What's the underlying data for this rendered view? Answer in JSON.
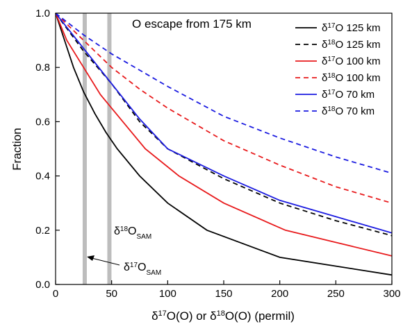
{
  "chart_data": {
    "type": "line",
    "title": "O escape from 175 km",
    "xlabel": {
      "parts": [
        {
          "text": "δ",
          "sup": false
        },
        {
          "text": "17",
          "sup": true
        },
        {
          "text": "O(O) or δ",
          "sup": false
        },
        {
          "text": "18",
          "sup": true
        },
        {
          "text": "O(O) (permil)",
          "sup": false
        }
      ]
    },
    "ylabel": "Fraction",
    "xlim": [
      0,
      300
    ],
    "ylim": [
      0,
      1.0
    ],
    "x_ticks": [
      0,
      50,
      100,
      150,
      200,
      250,
      300
    ],
    "y_ticks": [
      0.0,
      0.2,
      0.4,
      0.6,
      0.8,
      1.0
    ],
    "y_tick_labels": [
      "0.0",
      "0.2",
      "0.4",
      "0.6",
      "0.8",
      "1.0"
    ],
    "x_tick_labels": [
      "0",
      "50",
      "100",
      "150",
      "200",
      "250",
      "300"
    ],
    "grid": false,
    "legend_position": "top-right",
    "series": [
      {
        "name": {
          "prefix": "δ",
          "sup": "17",
          "suffix": "O 125 km"
        },
        "color": "#000000",
        "dash": "solid",
        "x": [
          0,
          8,
          16,
          25,
          35,
          45,
          55,
          75,
          100,
          135,
          200,
          300
        ],
        "y": [
          1.0,
          0.9,
          0.8,
          0.71,
          0.63,
          0.56,
          0.5,
          0.4,
          0.3,
          0.2,
          0.1,
          0.035
        ]
      },
      {
        "name": {
          "prefix": "δ",
          "sup": "18",
          "suffix": "O 125 km"
        },
        "color": "#000000",
        "dash": "dashed",
        "x": [
          0,
          25,
          50,
          75,
          100,
          150,
          200,
          250,
          300
        ],
        "y": [
          1.0,
          0.86,
          0.74,
          0.6,
          0.5,
          0.39,
          0.3,
          0.235,
          0.18
        ]
      },
      {
        "name": {
          "prefix": "δ",
          "sup": "17",
          "suffix": "O 100 km"
        },
        "color": "#e8191b",
        "dash": "solid",
        "x": [
          0,
          10,
          25,
          40,
          60,
          80,
          110,
          150,
          205,
          250,
          300
        ],
        "y": [
          1.0,
          0.9,
          0.8,
          0.7,
          0.6,
          0.5,
          0.4,
          0.3,
          0.2,
          0.155,
          0.105
        ]
      },
      {
        "name": {
          "prefix": "δ",
          "sup": "18",
          "suffix": "O 100 km"
        },
        "color": "#e8191b",
        "dash": "dashed",
        "x": [
          0,
          25,
          50,
          75,
          100,
          150,
          200,
          250,
          300
        ],
        "y": [
          1.0,
          0.9,
          0.8,
          0.72,
          0.65,
          0.53,
          0.44,
          0.36,
          0.3
        ]
      },
      {
        "name": {
          "prefix": "δ",
          "sup": "17",
          "suffix": "O 70 km"
        },
        "color": "#1a1ae0",
        "dash": "solid",
        "x": [
          0,
          25,
          50,
          75,
          100,
          150,
          200,
          250,
          300
        ],
        "y": [
          1.0,
          0.87,
          0.74,
          0.61,
          0.5,
          0.4,
          0.31,
          0.25,
          0.19
        ]
      },
      {
        "name": {
          "prefix": "δ",
          "sup": "18",
          "suffix": "O 70 km"
        },
        "color": "#1a1ae0",
        "dash": "dashed",
        "x": [
          0,
          25,
          50,
          75,
          100,
          150,
          200,
          250,
          300
        ],
        "y": [
          1.0,
          0.92,
          0.85,
          0.79,
          0.73,
          0.62,
          0.54,
          0.47,
          0.41
        ]
      }
    ],
    "reference_lines": [
      {
        "x": 26,
        "color": "#bdbdbd"
      },
      {
        "x": 48,
        "color": "#bdbdbd"
      }
    ],
    "annotations": [
      {
        "prefix": "δ",
        "sup": "18",
        "main": "O",
        "sub": "SAM"
      },
      {
        "prefix": "δ",
        "sup": "17",
        "main": "O",
        "sub": "SAM"
      }
    ]
  }
}
